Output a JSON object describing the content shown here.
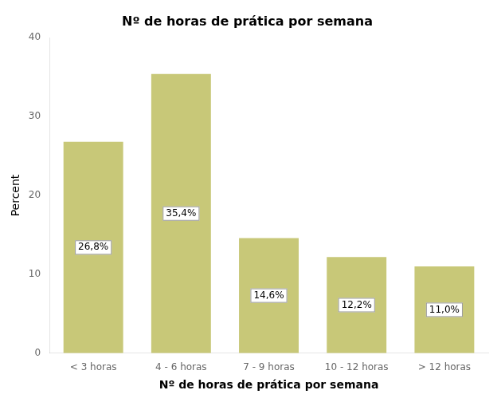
{
  "chart_data": {
    "type": "bar",
    "title": "Nº de horas de prática por semana",
    "xlabel": "Nº de horas de prática por semana",
    "ylabel": "Percent",
    "categories": [
      "< 3 horas",
      "4 - 6 horas",
      "7 - 9 horas",
      "10 - 12 horas",
      "> 12 horas"
    ],
    "values": [
      26.8,
      35.4,
      14.6,
      12.2,
      11.0
    ],
    "value_labels": [
      "26,8%",
      "35,4%",
      "14,6%",
      "12,2%",
      "11,0%"
    ],
    "data_labels": true,
    "color": "#c8c878",
    "ylim": [
      0,
      40
    ],
    "yticks": [
      0,
      10,
      20,
      30,
      40
    ],
    "grid": false
  }
}
